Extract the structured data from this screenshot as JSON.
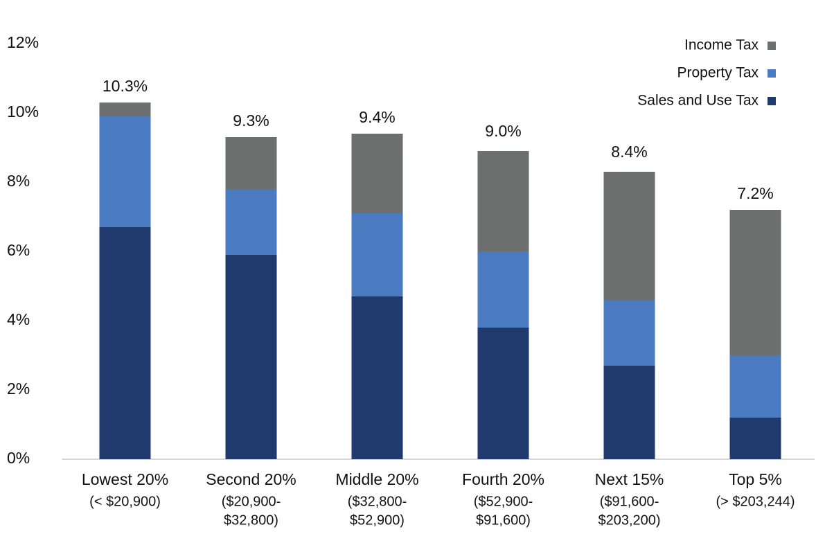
{
  "chart_data": {
    "type": "stacked_bar",
    "categories": [
      [
        "Lowest 20%",
        "(< $20,900)"
      ],
      [
        "Second 20%",
        "($20,900-",
        "$32,800)"
      ],
      [
        "Middle 20%",
        "($32,800-",
        "$52,900)"
      ],
      [
        "Fourth 20%",
        "($52,900-",
        "$91,600)"
      ],
      [
        "Next 15%",
        "($91,600-",
        "$203,200)"
      ],
      [
        "Top 5%",
        "(> $203,244)"
      ]
    ],
    "series": [
      {
        "name": "Sales and Use Tax",
        "color": "#203a6e",
        "values": [
          6.7,
          5.9,
          4.7,
          3.8,
          2.7,
          1.2
        ]
      },
      {
        "name": "Property Tax",
        "color": "#4a7abf",
        "values": [
          3.2,
          1.9,
          2.4,
          2.2,
          1.9,
          1.8
        ]
      },
      {
        "name": "Income Tax",
        "color": "#6d6f6e",
        "values": [
          0.4,
          1.5,
          2.3,
          2.9,
          3.7,
          4.2
        ]
      }
    ],
    "totals": {
      "values": [
        10.3,
        9.3,
        9.4,
        9.0,
        8.4,
        7.2
      ],
      "value_labels": [
        "10.3%",
        "9.3%",
        "9.4%",
        "9.0%",
        "8.4%",
        "7.2%"
      ]
    },
    "ylim": [
      0,
      12
    ],
    "yticks": [
      {
        "value": 0,
        "label": "0%"
      },
      {
        "value": 2,
        "label": "2%"
      },
      {
        "value": 4,
        "label": "4%"
      },
      {
        "value": 6,
        "label": "6%"
      },
      {
        "value": 8,
        "label": "8%"
      },
      {
        "value": 10,
        "label": "10%"
      },
      {
        "value": 12,
        "label": "12%"
      }
    ],
    "legend": "top-right"
  }
}
